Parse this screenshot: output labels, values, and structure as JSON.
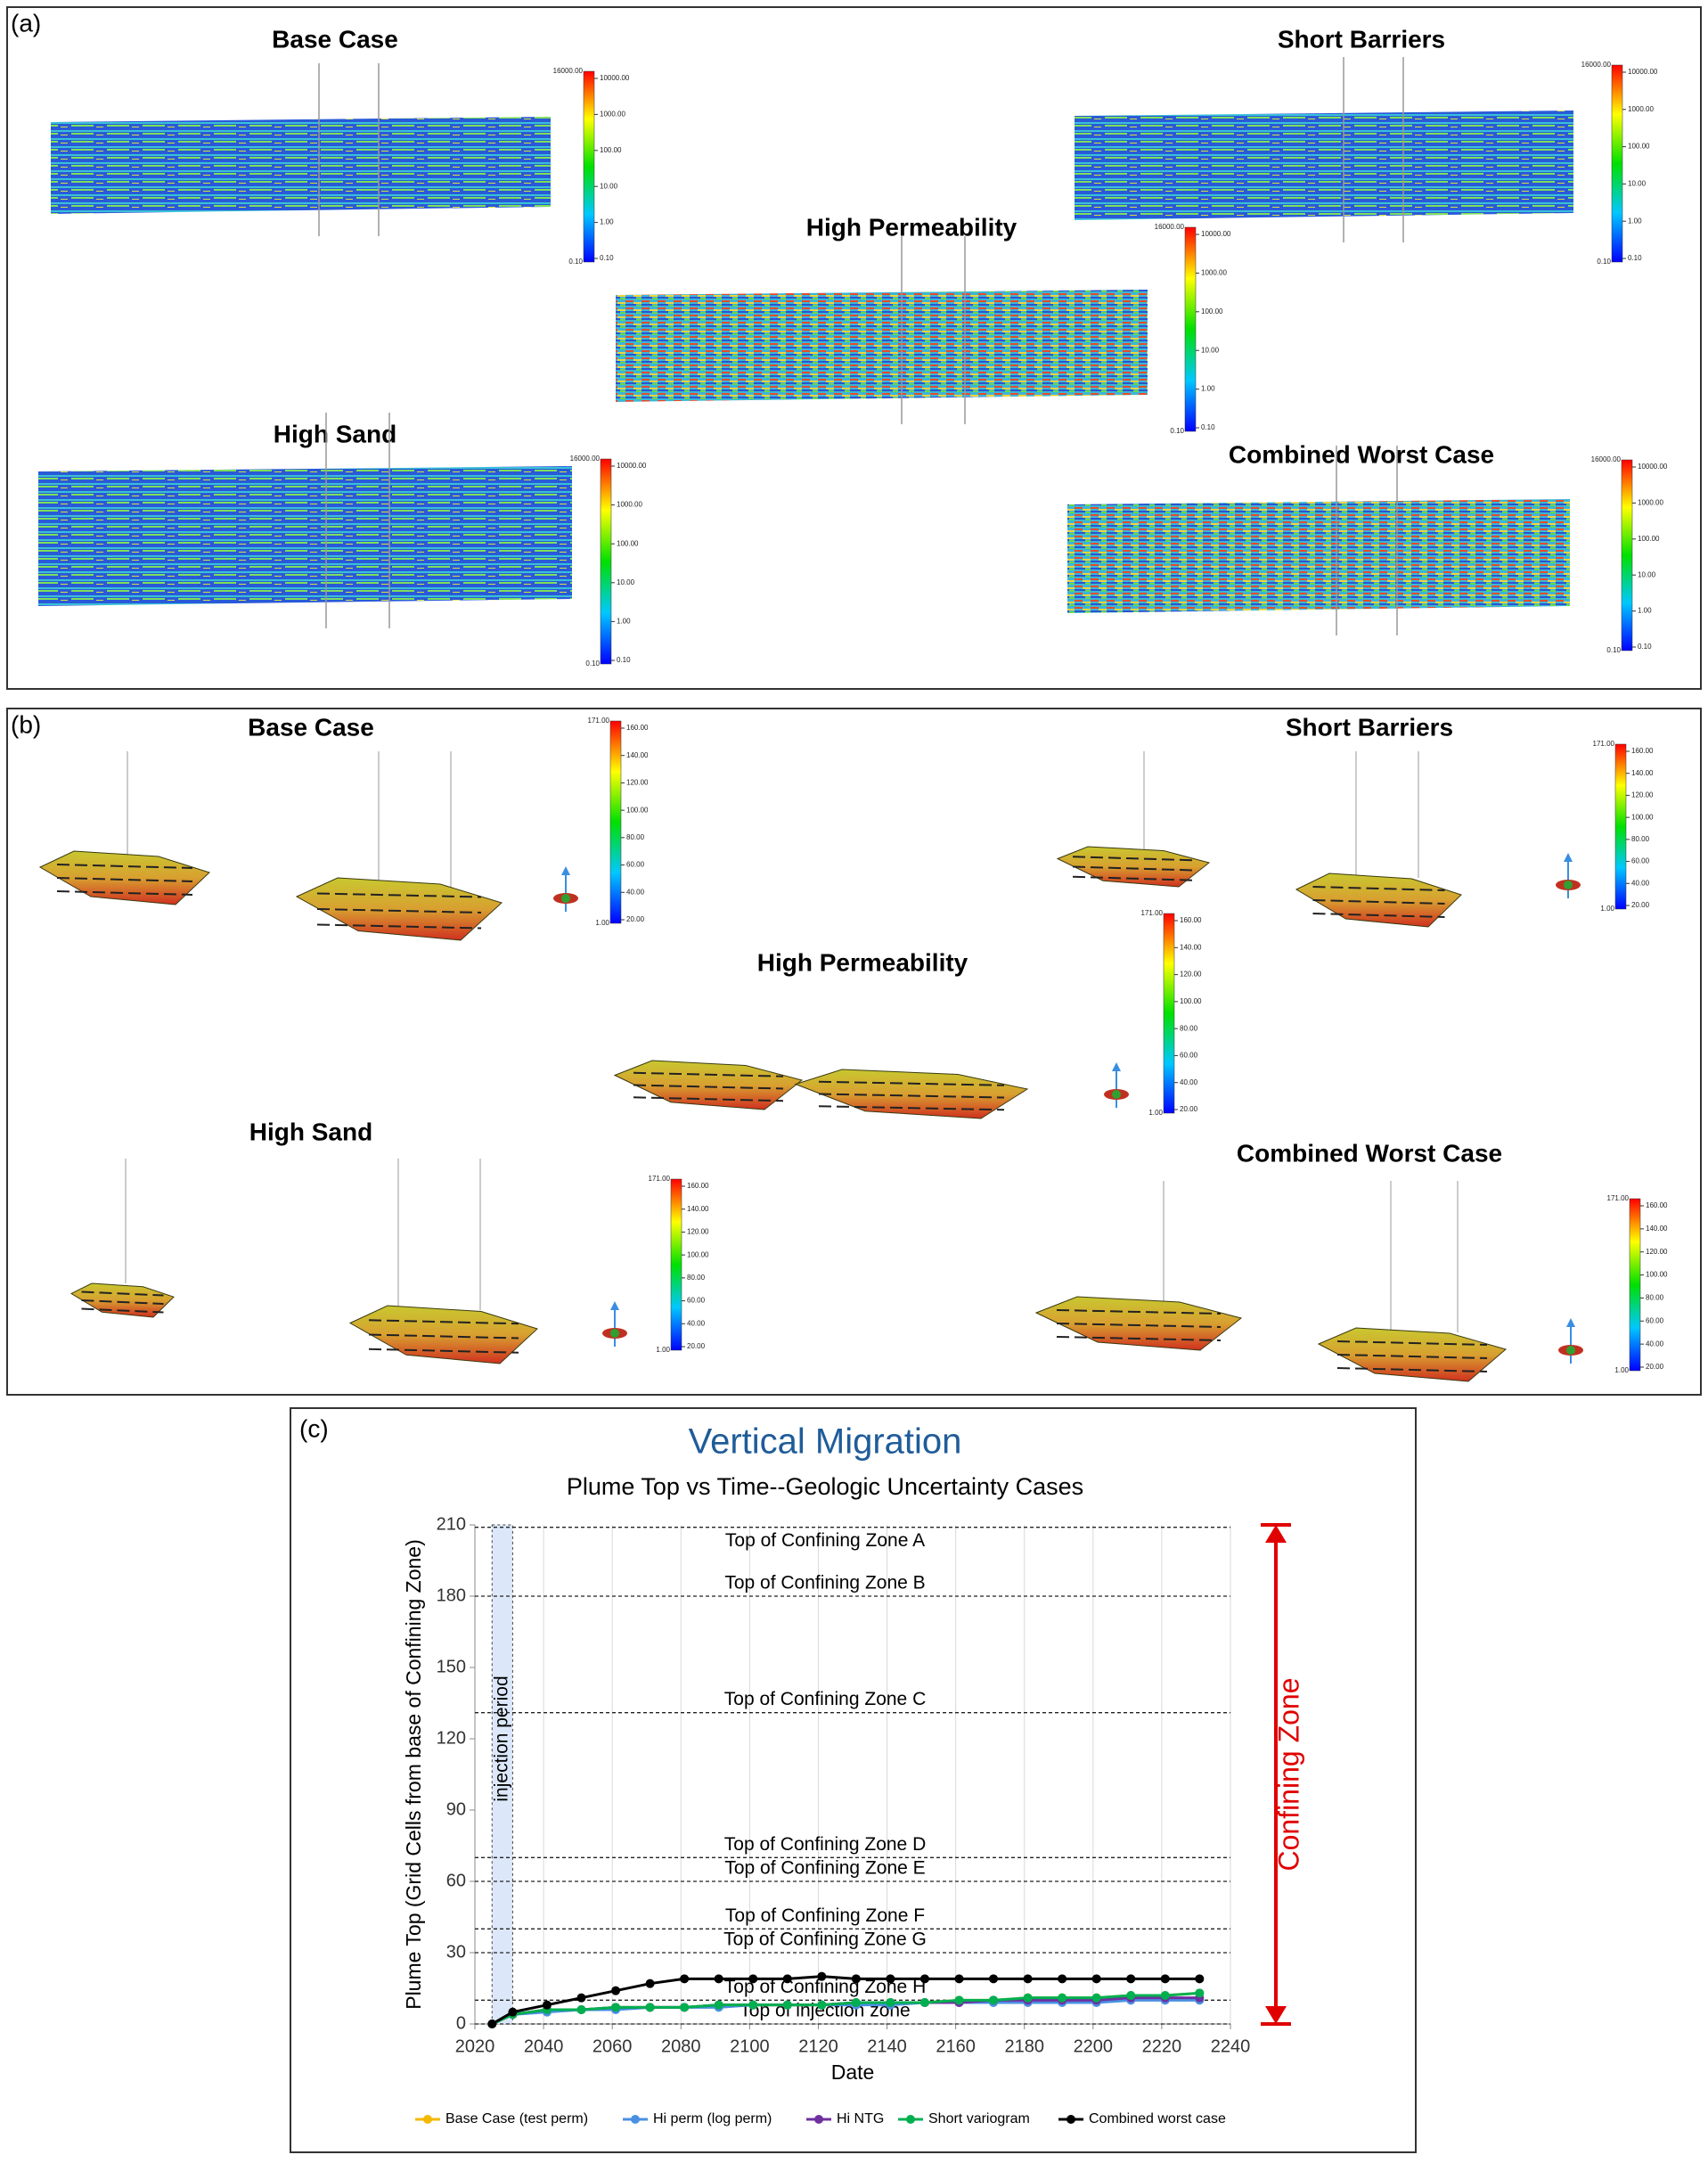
{
  "panel_a": {
    "label": "(a)",
    "titles": [
      "Base Case",
      "Short Barriers",
      "High Permeability",
      "High Sand",
      "Combined Worst Case"
    ],
    "colorbar": {
      "max": "16000.00",
      "ticks": [
        "10000.00",
        "1000.00",
        "100.00",
        "10.00",
        "1.00",
        "0.10"
      ],
      "min": "0.10"
    }
  },
  "panel_b": {
    "label": "(b)",
    "titles": [
      "Base Case",
      "Short Barriers",
      "High Permeability",
      "High Sand",
      "Combined Worst Case"
    ],
    "colorbar": {
      "max": "171.00",
      "ticks": [
        "160.00",
        "140.00",
        "120.00",
        "100.00",
        "80.00",
        "60.00",
        "40.00",
        "20.00"
      ],
      "min": "1.00"
    }
  },
  "chart_data": {
    "type": "line",
    "panel_label": "(c)",
    "title": "Vertical Migration",
    "subtitle": "Plume Top vs Time--Geologic Uncertainty Cases",
    "x_label": "Date",
    "y_label": "Plume Top (Grid Cells from base of  Confining Zone)",
    "xlim": [
      2020,
      2240
    ],
    "xticks": [
      2020,
      2040,
      2060,
      2080,
      2100,
      2120,
      2140,
      2160,
      2180,
      2200,
      2220,
      2240
    ],
    "ylim": [
      0,
      210
    ],
    "yticks": [
      0,
      30,
      60,
      90,
      120,
      150,
      180,
      210
    ],
    "grid": true,
    "legend": "bottom",
    "injection_period": {
      "label": "injection period",
      "start": 2025,
      "end": 2031
    },
    "reference_lines": [
      {
        "label": "Top of Confining Zone A",
        "value": 209
      },
      {
        "label": "Top of Confining Zone B",
        "value": 180
      },
      {
        "label": "Top of Confining Zone C",
        "value": 131
      },
      {
        "label": "Top of Confining Zone D",
        "value": 70
      },
      {
        "label": "Top of Confining Zone E",
        "value": 60
      },
      {
        "label": "Top of Confining Zone F",
        "value": 40
      },
      {
        "label": "Top of Confining Zone G",
        "value": 30
      },
      {
        "label": "Top of Confining Zone H",
        "value": 10
      },
      {
        "label": "Top of injection zone",
        "value": 0
      }
    ],
    "range_annotation": {
      "label": "Confining Zone",
      "from": 0,
      "to": 210,
      "color": "#e00000"
    },
    "x": [
      2025,
      2031,
      2041,
      2051,
      2061,
      2071,
      2081,
      2091,
      2101,
      2111,
      2121,
      2131,
      2141,
      2151,
      2161,
      2171,
      2181,
      2191,
      2201,
      2211,
      2221,
      2231
    ],
    "series": [
      {
        "name": "Base Case (test perm)",
        "color": "#f5b800",
        "values": [
          0,
          4,
          6,
          6,
          7,
          7,
          7,
          8,
          8,
          8,
          8,
          9,
          9,
          9,
          10,
          10,
          11,
          11,
          11,
          12,
          12,
          13
        ]
      },
      {
        "name": "Hi perm (log perm)",
        "color": "#4a90e2",
        "values": [
          0,
          4,
          5,
          6,
          6,
          7,
          7,
          7,
          8,
          8,
          8,
          8,
          8,
          9,
          9,
          9,
          9,
          9,
          9,
          10,
          10,
          10
        ]
      },
      {
        "name": "Hi NTG",
        "color": "#7030a0",
        "values": [
          0,
          4,
          6,
          6,
          7,
          7,
          7,
          8,
          8,
          8,
          8,
          9,
          9,
          9,
          9,
          10,
          10,
          10,
          10,
          11,
          11,
          11
        ]
      },
      {
        "name": "Short variogram",
        "color": "#00b050",
        "values": [
          0,
          4,
          6,
          6,
          7,
          7,
          7,
          8,
          8,
          8,
          8,
          9,
          9,
          9,
          10,
          10,
          11,
          11,
          11,
          12,
          12,
          13
        ]
      },
      {
        "name": "Combined worst case",
        "color": "#000000",
        "values": [
          0,
          5,
          8,
          11,
          14,
          17,
          19,
          19,
          19,
          19,
          20,
          19,
          19,
          19,
          19,
          19,
          19,
          19,
          19,
          19,
          19,
          19
        ]
      }
    ]
  }
}
